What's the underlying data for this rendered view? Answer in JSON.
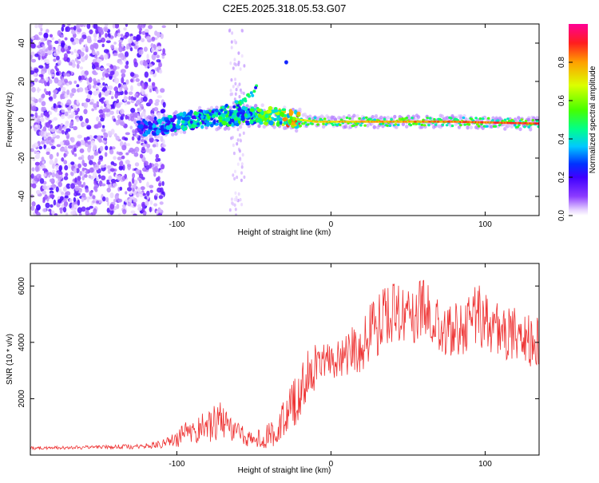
{
  "chart_data": [
    {
      "type": "heatmap",
      "title": "C2E5.2025.318.05.53.G07",
      "xlabel": "Height of straight line (km)",
      "ylabel": "Frequency (Hz)",
      "xlim": [
        -195,
        135
      ],
      "ylim": [
        -50,
        50
      ],
      "xticks": [
        -100,
        0,
        100
      ],
      "xtick_labels": [
        "-100",
        "0",
        "100"
      ],
      "yticks": [
        -40,
        -20,
        0,
        20,
        40
      ],
      "ytick_labels": [
        "-40",
        "-20",
        "0",
        "20",
        "40"
      ],
      "colorbar": {
        "label": "Normalized spectral amplitude",
        "range": [
          0,
          1
        ],
        "ticks": [
          0.0,
          0.2,
          0.4,
          0.6,
          0.8
        ],
        "tick_labels": [
          "0.0",
          "0.2",
          "0.4",
          "0.6",
          "0.8"
        ],
        "colormap": [
          "#ffffff",
          "#e6d2ff",
          "#8c3cff",
          "#3f00ff",
          "#0032ff",
          "#00c8ff",
          "#00ff8c",
          "#46ff00",
          "#dcff00",
          "#ffa000",
          "#ff1e1e",
          "#ff0096"
        ]
      },
      "features": [
        {
          "name": "broadband noise",
          "x_range": [
            -195,
            -108
          ],
          "freq_range": [
            -50,
            50
          ],
          "amplitude": 0.12
        },
        {
          "name": "weak noise column",
          "x_range": [
            -66,
            -56
          ],
          "freq_range": [
            -50,
            50
          ],
          "amplitude": 0.05
        },
        {
          "name": "carrier track",
          "x": [
            -130,
            -110,
            -90,
            -70,
            -55,
            -40,
            -30,
            -20,
            -10,
            0,
            40,
            80,
            135
          ],
          "freq": [
            -5,
            -3,
            0,
            1,
            2,
            2,
            1,
            0,
            -1,
            -1,
            -1,
            -1,
            -2
          ],
          "amplitude": [
            0.2,
            0.3,
            0.35,
            0.4,
            0.4,
            0.5,
            0.6,
            0.75,
            0.8,
            0.82,
            0.85,
            0.9,
            0.95
          ]
        },
        {
          "name": "diagonal feature",
          "x": [
            -92,
            -75,
            -62,
            -52,
            -48
          ],
          "freq": [
            -3,
            3,
            8,
            13,
            17
          ],
          "amplitude": 0.4
        },
        {
          "name": "isolated blob",
          "x": -29,
          "freq": 30,
          "amplitude": 0.25
        }
      ]
    },
    {
      "type": "line",
      "title": "",
      "xlabel": "Height of straight line (km)",
      "ylabel": "SNR (10 * v/v)",
      "xlim": [
        -195,
        135
      ],
      "ylim": [
        0,
        6800
      ],
      "xticks": [
        -100,
        0,
        100
      ],
      "xtick_labels": [
        "-100",
        "0",
        "100"
      ],
      "yticks": [
        2000,
        4000,
        6000
      ],
      "ytick_labels": [
        "2000",
        "4000",
        "6000"
      ],
      "color": "#ee3333",
      "series_envelope": {
        "x": [
          -195,
          -170,
          -150,
          -130,
          -110,
          -100,
          -95,
          -88,
          -80,
          -72,
          -65,
          -58,
          -50,
          -42,
          -35,
          -28,
          -22,
          -18,
          -15,
          -12,
          -8,
          -4,
          0,
          5,
          10,
          15,
          20,
          25,
          30,
          35,
          40,
          50,
          60,
          65,
          70,
          80,
          90,
          95,
          100,
          110,
          120,
          130,
          135
        ],
        "mean": [
          250,
          260,
          280,
          300,
          380,
          550,
          750,
          900,
          1000,
          1250,
          900,
          700,
          550,
          650,
          950,
          1500,
          2000,
          2500,
          2800,
          3000,
          3200,
          3350,
          3500,
          3400,
          3500,
          3700,
          3900,
          4300,
          4600,
          5000,
          5000,
          4800,
          5200,
          4800,
          4600,
          4400,
          4800,
          5000,
          4700,
          4400,
          4300,
          4000,
          4100
        ],
        "jitter": [
          40,
          40,
          50,
          60,
          100,
          200,
          300,
          350,
          400,
          500,
          300,
          250,
          200,
          300,
          450,
          600,
          650,
          650,
          650,
          600,
          600,
          550,
          500,
          550,
          600,
          650,
          700,
          750,
          800,
          800,
          800,
          750,
          800,
          800,
          750,
          700,
          800,
          800,
          750,
          700,
          700,
          650,
          650
        ]
      }
    }
  ]
}
